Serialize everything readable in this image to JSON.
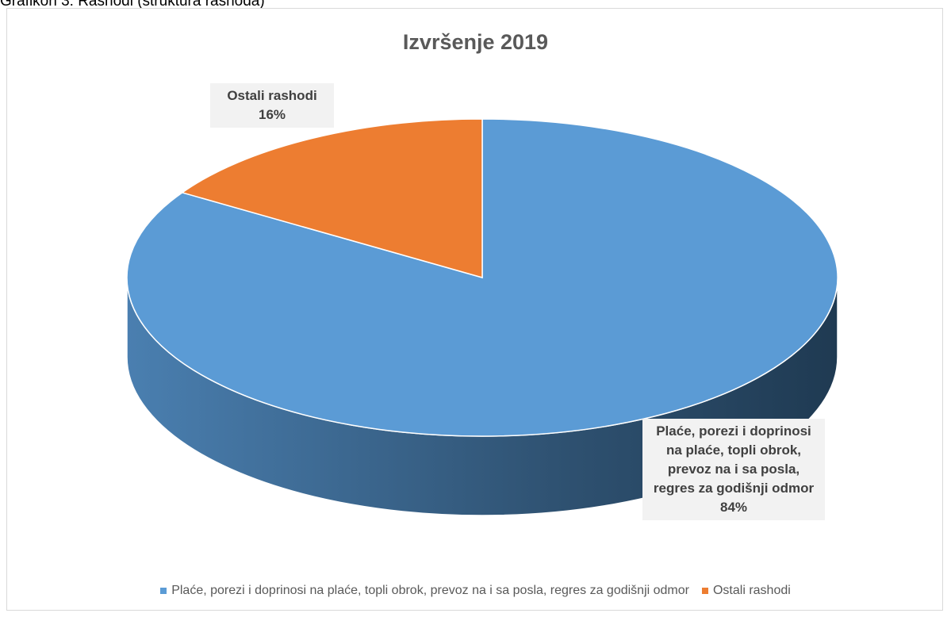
{
  "caption": "Grafikon 3: Rashodi (struktura rashoda)",
  "chart_data": {
    "type": "pie3d",
    "title": "Izvršenje 2019",
    "categories": [
      "Plaće, porezi i doprinosi na plaće, topli obrok, prevoz na i sa posla, regres za godišnji odmor",
      "Ostali rashodi"
    ],
    "values": [
      84,
      16
    ],
    "value_labels": [
      "84%",
      "16%"
    ],
    "colors": [
      "#5b9bd5",
      "#ed7d31"
    ],
    "legend": "bottom"
  }
}
